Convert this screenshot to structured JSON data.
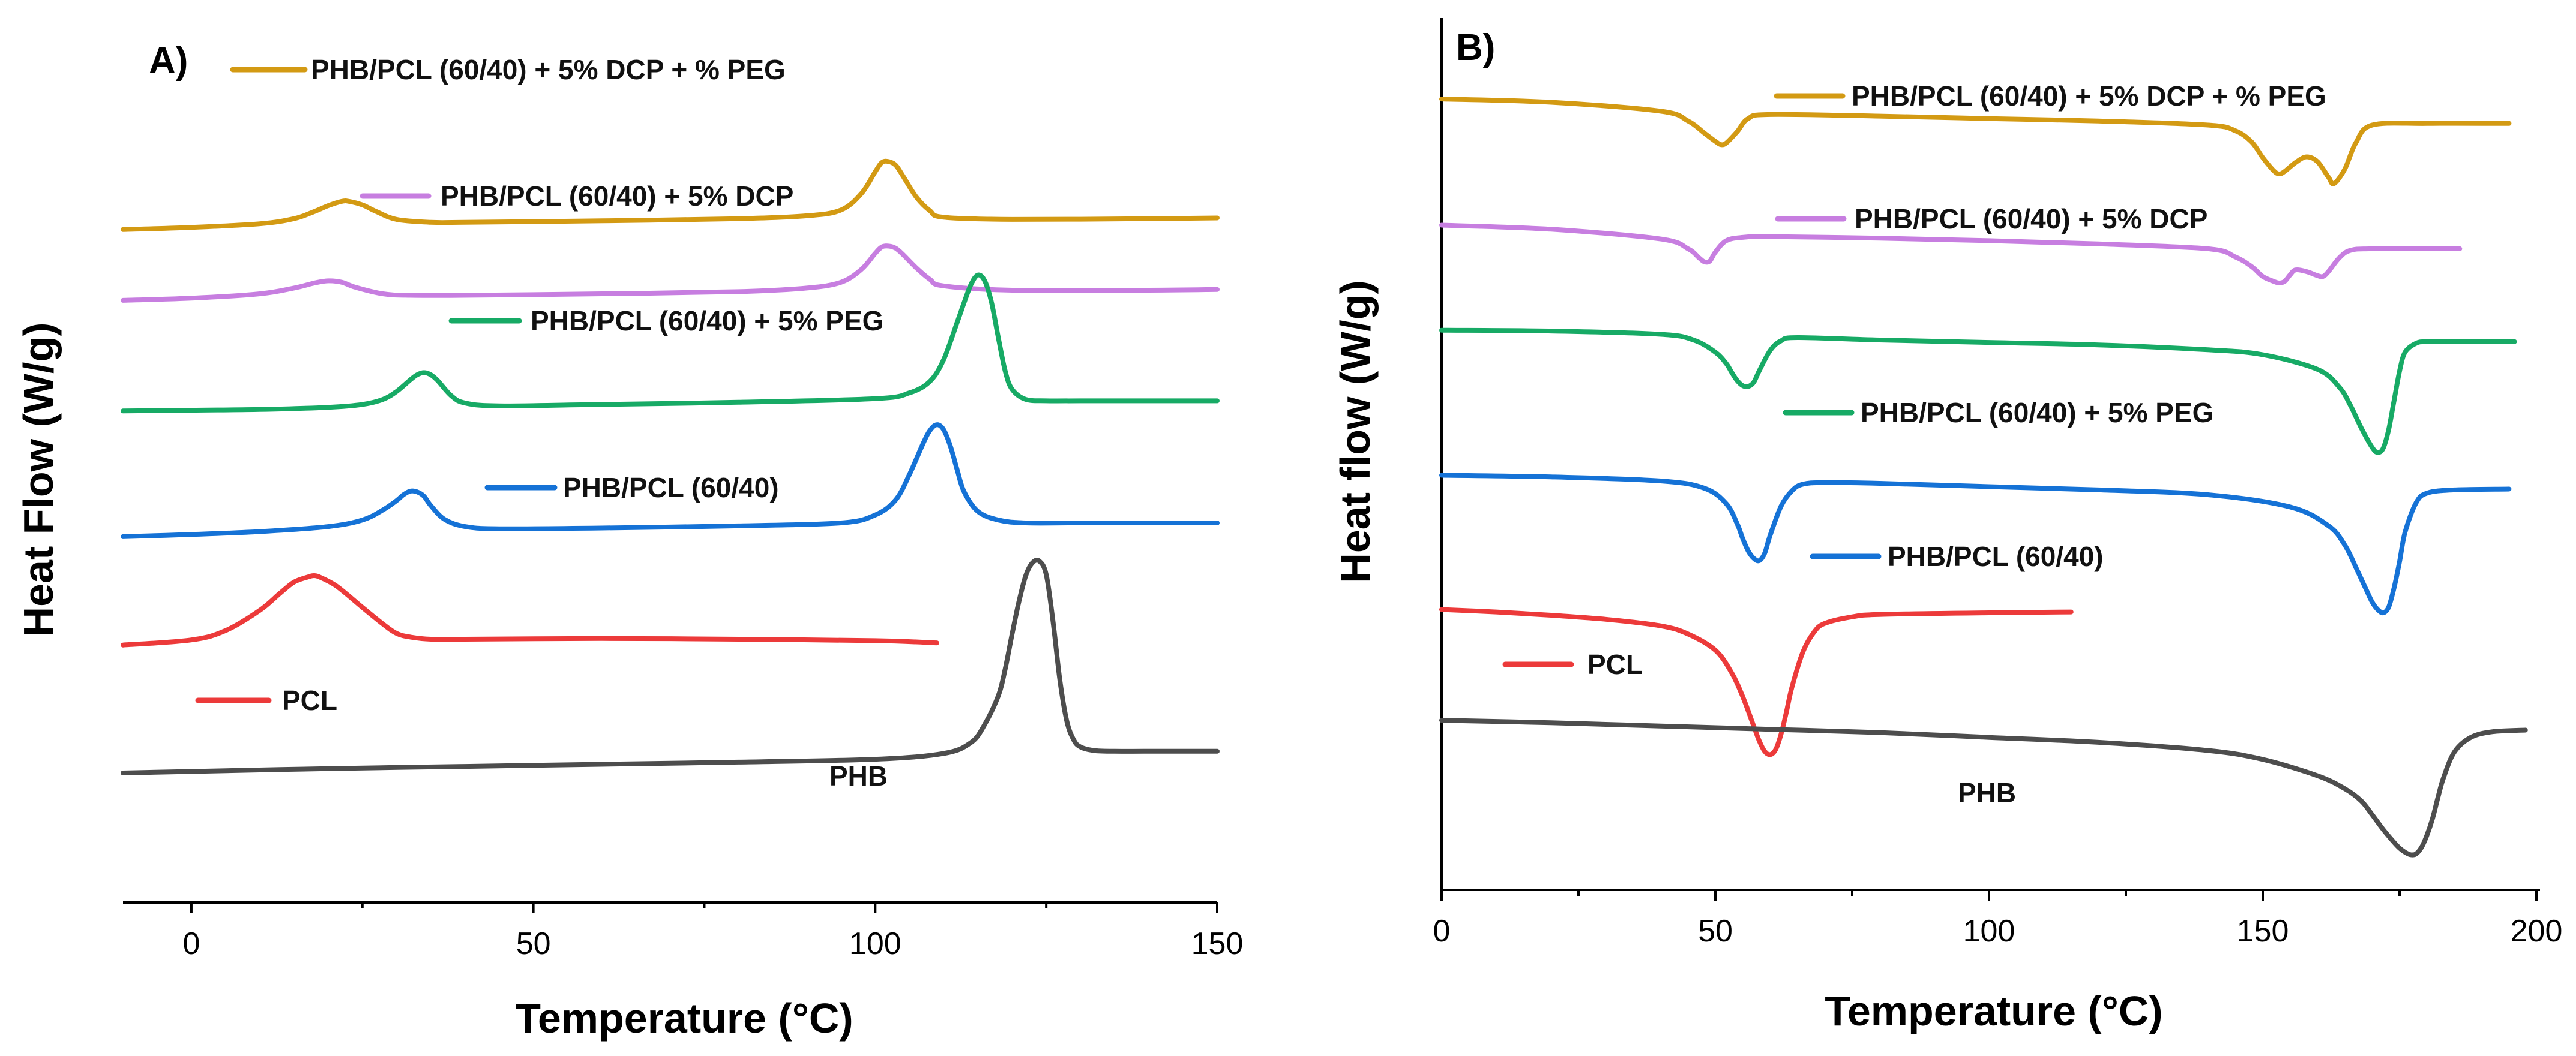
{
  "chart_data": [
    {
      "id": "A",
      "type": "line",
      "panel_label": "A)",
      "title": "",
      "xlabel": "Temperature (°C)",
      "ylabel": "Heat Flow (W/g)",
      "xlim": [
        -10,
        150
      ],
      "ylim": [
        0,
        100
      ],
      "x_ticks": [
        0,
        50,
        100,
        150
      ],
      "grid": false,
      "series": [
        {
          "name": "PHB/PCL (60/40) + 5% DCP + % PEG",
          "color": "#d39a13",
          "x": [
            -10,
            0,
            10,
            15,
            18,
            20,
            22,
            23,
            25,
            27,
            30,
            35,
            40,
            60,
            80,
            90,
            95,
            98,
            100,
            101,
            102,
            103,
            104,
            106,
            108,
            110,
            120,
            140,
            150
          ],
          "y": [
            84.0,
            84.3,
            84.8,
            85.5,
            86.5,
            87.3,
            87.9,
            87.9,
            87.4,
            86.5,
            85.4,
            85.0,
            85.0,
            85.2,
            85.5,
            85.9,
            86.7,
            89.0,
            92.0,
            93.3,
            93.4,
            92.9,
            91.5,
            88.5,
            86.6,
            85.7,
            85.4,
            85.5,
            85.6
          ]
        },
        {
          "name": "PHB/PCL (60/40) + 5% DCP",
          "color": "#c77ee0",
          "x": [
            -10,
            0,
            10,
            15,
            18,
            20,
            22,
            24,
            28,
            32,
            40,
            60,
            80,
            90,
            95,
            98,
            100,
            101,
            102,
            103,
            104,
            106,
            108,
            110,
            120,
            140,
            150
          ],
          "y": [
            74.2,
            74.5,
            75.1,
            75.9,
            76.6,
            76.9,
            76.7,
            76.0,
            75.1,
            74.9,
            74.9,
            75.1,
            75.4,
            75.9,
            76.7,
            78.5,
            80.7,
            81.6,
            81.7,
            81.4,
            80.6,
            78.7,
            77.1,
            76.2,
            75.6,
            75.6,
            75.7
          ]
        },
        {
          "name": "PHB/PCL (60/40) + 5% PEG",
          "color": "#17aa65",
          "x": [
            -10,
            0,
            10,
            20,
            25,
            28,
            30,
            32,
            33,
            34,
            35,
            36,
            38,
            40,
            45,
            60,
            80,
            100,
            105,
            108,
            110,
            112,
            113,
            114,
            115,
            116,
            117,
            118,
            119,
            120,
            122,
            125,
            130,
            150
          ],
          "y": [
            58.9,
            59.0,
            59.1,
            59.4,
            59.8,
            60.5,
            61.6,
            63.2,
            63.9,
            64.2,
            63.9,
            63.1,
            61.0,
            60.0,
            59.6,
            59.8,
            60.1,
            60.6,
            61.4,
            63.0,
            66.0,
            71.2,
            73.9,
            76.4,
            77.7,
            76.9,
            73.9,
            69.0,
            64.4,
            61.9,
            60.5,
            60.3,
            60.3,
            60.3
          ]
        },
        {
          "name": "PHB/PCL (60/40)",
          "color": "#1572d6",
          "x": [
            -10,
            0,
            10,
            20,
            25,
            28,
            30,
            31,
            32,
            33,
            34,
            35,
            37,
            40,
            45,
            60,
            80,
            95,
            100,
            103,
            105,
            107,
            108,
            109,
            110,
            111,
            112,
            113,
            115,
            118,
            122,
            130,
            150
          ],
          "y": [
            41.5,
            41.8,
            42.2,
            42.9,
            43.8,
            45.2,
            46.5,
            47.3,
            47.8,
            47.7,
            47.1,
            45.8,
            43.9,
            42.9,
            42.6,
            42.7,
            43.0,
            43.4,
            44.5,
            46.6,
            50.1,
            54.4,
            56.2,
            57.0,
            56.3,
            54.0,
            50.7,
            47.7,
            45.0,
            43.8,
            43.4,
            43.4,
            43.4
          ]
        },
        {
          "name": "PCL",
          "color": "#ec3a3a",
          "x": [
            -10,
            0,
            5,
            10,
            13,
            15,
            17,
            18,
            19,
            21,
            23,
            25,
            28,
            30,
            32,
            35,
            40,
            60,
            80,
            100,
            109
          ],
          "y": [
            26.5,
            27.2,
            28.5,
            31.3,
            33.7,
            35.2,
            35.9,
            36.1,
            35.8,
            34.8,
            33.3,
            31.7,
            29.4,
            28.1,
            27.6,
            27.3,
            27.3,
            27.4,
            27.3,
            27.1,
            26.8
          ]
        },
        {
          "name": "PHB",
          "color": "#4d4d4d",
          "x": [
            -10,
            0,
            20,
            40,
            60,
            80,
            100,
            110,
            114,
            116,
            118,
            119,
            120,
            121,
            122,
            123,
            124,
            125,
            126,
            127,
            128,
            129,
            130,
            132,
            135,
            140,
            150
          ],
          "y": [
            8.8,
            9.0,
            9.4,
            9.7,
            10.0,
            10.3,
            10.7,
            11.5,
            13.0,
            15.5,
            19.5,
            23.2,
            28.0,
            32.5,
            36.1,
            37.9,
            38.1,
            36.2,
            29.7,
            21.6,
            16.0,
            13.4,
            12.4,
            11.9,
            11.8,
            11.8,
            11.8
          ]
        }
      ],
      "legend": [
        "PHB/PCL (60/40) + 5% DCP + % PEG",
        "PHB/PCL (60/40) + 5% DCP",
        "PHB/PCL (60/40) + 5% PEG",
        "PHB/PCL (60/40)",
        "PCL",
        "PHB"
      ]
    },
    {
      "id": "B",
      "type": "line",
      "panel_label": "B)",
      "title": "",
      "xlabel": "Temperature (°C)",
      "ylabel": "Heat flow (W/g)",
      "xlim": [
        0,
        200
      ],
      "ylim": [
        0,
        100
      ],
      "x_ticks": [
        0,
        50,
        100,
        150,
        200
      ],
      "grid": false,
      "series": [
        {
          "name": "PHB/PCL (60/40) + 5% DCP + % PEG",
          "color": "#d39a13",
          "x": [
            0,
            20,
            40,
            45,
            48,
            50,
            51,
            52,
            54,
            56,
            60,
            80,
            100,
            120,
            140,
            145,
            148,
            150,
            152,
            153,
            154,
            156,
            158,
            160,
            162,
            163,
            165,
            167,
            170,
            180,
            195
          ],
          "y": [
            93.0,
            92.6,
            91.5,
            90.3,
            88.8,
            87.8,
            87.4,
            87.6,
            89.0,
            90.6,
            91.1,
            90.9,
            90.6,
            90.3,
            89.8,
            89.1,
            87.7,
            85.8,
            84.2,
            83.8,
            84.1,
            85.2,
            85.9,
            85.3,
            83.4,
            82.6,
            84.4,
            87.6,
            89.8,
            90.0,
            90.0
          ]
        },
        {
          "name": "PHB/PCL (60/40) + 5% DCP",
          "color": "#c77ee0",
          "x": [
            0,
            20,
            40,
            45,
            47,
            48,
            49,
            50,
            52,
            55,
            60,
            80,
            100,
            120,
            140,
            145,
            148,
            150,
            152,
            153,
            154,
            155,
            156,
            158,
            160,
            161,
            162,
            164,
            166,
            170,
            186
          ],
          "y": [
            77.5,
            77.0,
            75.8,
            74.6,
            73.5,
            73.0,
            73.1,
            74.2,
            75.6,
            76.0,
            76.1,
            75.9,
            75.6,
            75.2,
            74.6,
            73.6,
            72.4,
            71.2,
            70.6,
            70.4,
            70.6,
            71.4,
            72.0,
            71.8,
            71.3,
            71.2,
            71.8,
            73.5,
            74.4,
            74.6,
            74.6
          ]
        },
        {
          "name": "PHB/PCL (60/40) + 5% PEG",
          "color": "#17aa65",
          "x": [
            0,
            20,
            40,
            46,
            50,
            52,
            53,
            54,
            55,
            56,
            57,
            58,
            60,
            62,
            65,
            80,
            100,
            120,
            140,
            150,
            160,
            164,
            166,
            168,
            170,
            171,
            172,
            173,
            174,
            175,
            176,
            178,
            180,
            185,
            196
          ],
          "y": [
            64.6,
            64.5,
            64.1,
            63.4,
            61.9,
            60.5,
            59.4,
            58.4,
            57.8,
            57.7,
            58.2,
            59.6,
            62.1,
            63.3,
            63.7,
            63.4,
            63.1,
            62.8,
            62.2,
            61.6,
            59.8,
            57.6,
            55.4,
            52.6,
            50.2,
            49.6,
            50.1,
            52.4,
            56.0,
            59.6,
            61.9,
            63.0,
            63.2,
            63.2,
            63.2
          ]
        },
        {
          "name": "PHB/PCL (60/40)",
          "color": "#1572d6",
          "x": [
            0,
            20,
            40,
            48,
            52,
            54,
            55,
            56,
            57,
            58,
            59,
            60,
            62,
            64,
            66,
            70,
            80,
            100,
            120,
            140,
            155,
            162,
            165,
            167,
            169,
            170,
            171,
            172,
            173,
            174,
            175,
            176,
            178,
            180,
            185,
            195
          ],
          "y": [
            46.8,
            46.6,
            46.1,
            45.2,
            43.3,
            40.8,
            39.0,
            37.5,
            36.6,
            36.3,
            37.2,
            39.4,
            43.0,
            44.9,
            45.7,
            45.9,
            45.8,
            45.4,
            45.0,
            44.4,
            42.9,
            40.6,
            38.2,
            35.5,
            32.6,
            31.2,
            30.3,
            29.9,
            30.6,
            33.0,
            36.2,
            39.8,
            43.4,
            44.6,
            45.0,
            45.1
          ]
        },
        {
          "name": "PCL",
          "color": "#ec3a3a",
          "x": [
            0,
            10,
            20,
            30,
            40,
            45,
            50,
            53,
            55,
            57,
            58,
            59,
            60,
            61,
            62,
            63,
            64,
            66,
            68,
            70,
            75,
            80,
            100,
            115
          ],
          "y": [
            30.3,
            30.0,
            29.6,
            29.1,
            28.3,
            27.3,
            25.3,
            22.5,
            19.6,
            16.0,
            14.2,
            12.9,
            12.5,
            13.1,
            15.0,
            17.8,
            20.8,
            25.1,
            27.5,
            28.6,
            29.4,
            29.7,
            29.9,
            30.0
          ]
        },
        {
          "name": "PHB",
          "color": "#4d4d4d",
          "x": [
            0,
            20,
            40,
            60,
            80,
            100,
            120,
            140,
            150,
            160,
            165,
            168,
            170,
            172,
            174,
            175,
            176,
            177,
            178,
            179,
            180,
            181,
            182,
            183,
            185,
            188,
            192,
            198
          ],
          "y": [
            16.7,
            16.4,
            16.0,
            15.6,
            15.2,
            14.6,
            14.0,
            13.0,
            11.9,
            9.9,
            8.3,
            6.8,
            5.1,
            3.3,
            1.7,
            1.0,
            0.5,
            0.2,
            0.3,
            1.1,
            2.6,
            4.6,
            7.2,
            9.6,
            12.8,
            14.6,
            15.3,
            15.5
          ]
        }
      ],
      "legend": [
        "PHB/PCL (60/40) + 5% DCP + % PEG",
        "PHB/PCL (60/40) + 5% DCP",
        "PHB/PCL (60/40) + 5% PEG",
        "PHB/PCL (60/40)",
        "PCL",
        "PHB"
      ]
    }
  ]
}
